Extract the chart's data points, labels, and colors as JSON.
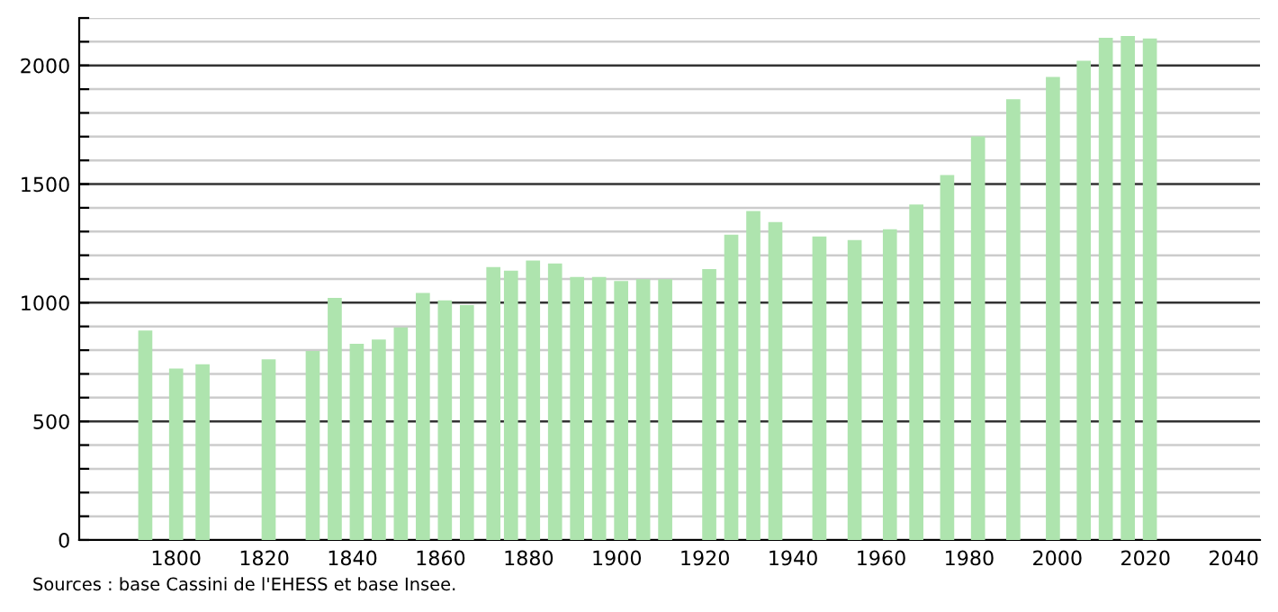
{
  "chart_data": {
    "type": "bar",
    "x": [
      1793,
      1800,
      1806,
      1821,
      1831,
      1836,
      1841,
      1846,
      1851,
      1856,
      1861,
      1866,
      1872,
      1876,
      1881,
      1886,
      1891,
      1896,
      1901,
      1906,
      1911,
      1921,
      1926,
      1931,
      1936,
      1946,
      1954,
      1962,
      1968,
      1975,
      1982,
      1990,
      1999,
      2006,
      2011,
      2016,
      2021
    ],
    "values": [
      883,
      723,
      741,
      761,
      797,
      1020,
      827,
      845,
      896,
      1041,
      1010,
      990,
      1150,
      1135,
      1178,
      1165,
      1109,
      1109,
      1091,
      1099,
      1099,
      1142,
      1287,
      1386,
      1340,
      1279,
      1264,
      1310,
      1414,
      1538,
      1701,
      1858,
      1952,
      2020,
      2117,
      2124,
      2114
    ],
    "color": "#aee4ae",
    "xlim": [
      1778,
      2046
    ],
    "xticks": [
      1800,
      1820,
      1840,
      1860,
      1880,
      1900,
      1920,
      1940,
      1960,
      1980,
      2000,
      2020,
      2040
    ],
    "ylim": [
      0,
      2200
    ],
    "yticks": [
      0,
      {
        "value": 100,
        "label": null
      },
      {
        "value": 200,
        "label": null
      },
      {
        "value": 300,
        "label": null
      },
      {
        "value": 400,
        "label": null
      },
      500,
      {
        "value": 600,
        "label": null
      },
      {
        "value": 700,
        "label": null
      },
      {
        "value": 800,
        "label": null
      },
      {
        "value": 900,
        "label": null
      },
      1000,
      {
        "value": 1100,
        "label": null
      },
      {
        "value": 1200,
        "label": null
      },
      {
        "value": 1300,
        "label": null
      },
      {
        "value": 1400,
        "label": null
      },
      1500,
      {
        "value": 1600,
        "label": null
      },
      {
        "value": 1700,
        "label": null
      },
      {
        "value": 1800,
        "label": null
      },
      {
        "value": 1900,
        "label": null
      },
      2000,
      {
        "value": 2100,
        "label": null
      },
      {
        "value": 2200,
        "label": null
      }
    ],
    "grid": "y",
    "annotations": [
      "Sources : base Cassini de l'EHESS et base Insee."
    ]
  }
}
